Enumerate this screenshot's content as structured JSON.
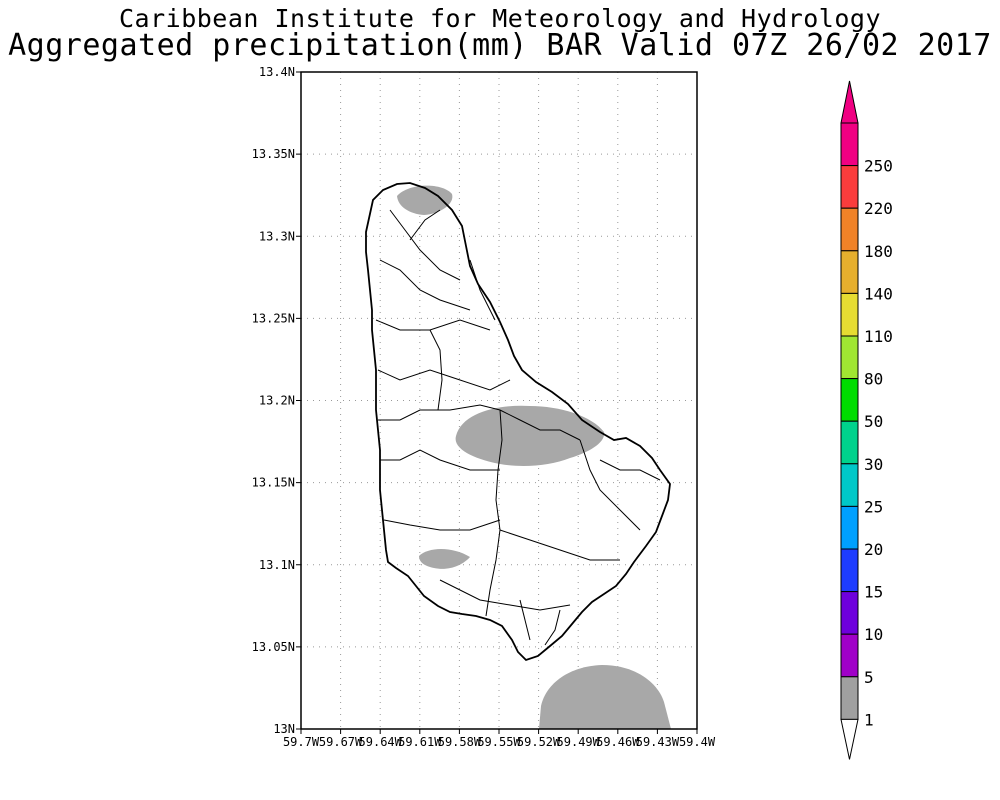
{
  "header": {
    "org": "Caribbean Institute for Meteorology and Hydrology",
    "title": "Aggregated precipitation(mm) BAR Valid 07Z 26/02 2017"
  },
  "map": {
    "lat_ticks": [
      "13.4N",
      "13.35N",
      "13.3N",
      "13.25N",
      "13.2N",
      "13.15N",
      "13.1N",
      "13.05N",
      "13N"
    ],
    "lon_ticks": [
      "59.7W",
      "59.67W",
      "59.64W",
      "59.61W",
      "59.58W",
      "59.55W",
      "59.52W",
      "59.49W",
      "59.46W",
      "59.43W",
      "59.4W"
    ],
    "lat_range": [
      13.0,
      13.4
    ],
    "lon_range": [
      -59.7,
      -59.4
    ],
    "grid": true,
    "precip_color": "#a8a8a8"
  },
  "colorbar": {
    "levels": [
      "1",
      "5",
      "10",
      "15",
      "20",
      "25",
      "30",
      "50",
      "80",
      "110",
      "140",
      "180",
      "220",
      "250"
    ],
    "colors": [
      "#a0a0a0",
      "#a000c8",
      "#6e00dc",
      "#1e3cff",
      "#00a0ff",
      "#00c8c8",
      "#00d28c",
      "#00dc00",
      "#a0e632",
      "#e6dc32",
      "#e6af2d",
      "#f08228",
      "#fa3c3c",
      "#f00082"
    ],
    "bottom_triangle_color": "#ffffff",
    "top_triangle_color": "#f00082"
  }
}
